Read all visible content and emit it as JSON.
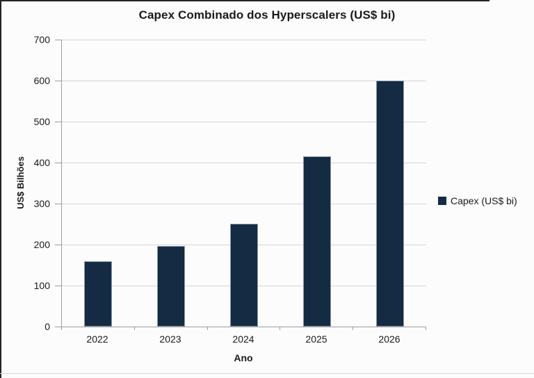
{
  "page": {
    "background": "#fcfcfc"
  },
  "chart_data": {
    "type": "bar",
    "title": "Capex Combinado dos Hyperscalers (US$ bi)",
    "xlabel": "Ano",
    "ylabel": "US$ Bilhões",
    "categories": [
      "2022",
      "2023",
      "2024",
      "2025",
      "2026"
    ],
    "values": [
      160,
      197,
      250,
      415,
      600
    ],
    "ylim": [
      0,
      700
    ],
    "yticks": [
      0,
      100,
      200,
      300,
      400,
      500,
      600,
      700
    ],
    "grid": true,
    "bar_color": "#152a43",
    "legend": {
      "position": "right",
      "entries": [
        {
          "label": "Capex (US$ bi)",
          "color": "#152a43"
        }
      ]
    }
  }
}
